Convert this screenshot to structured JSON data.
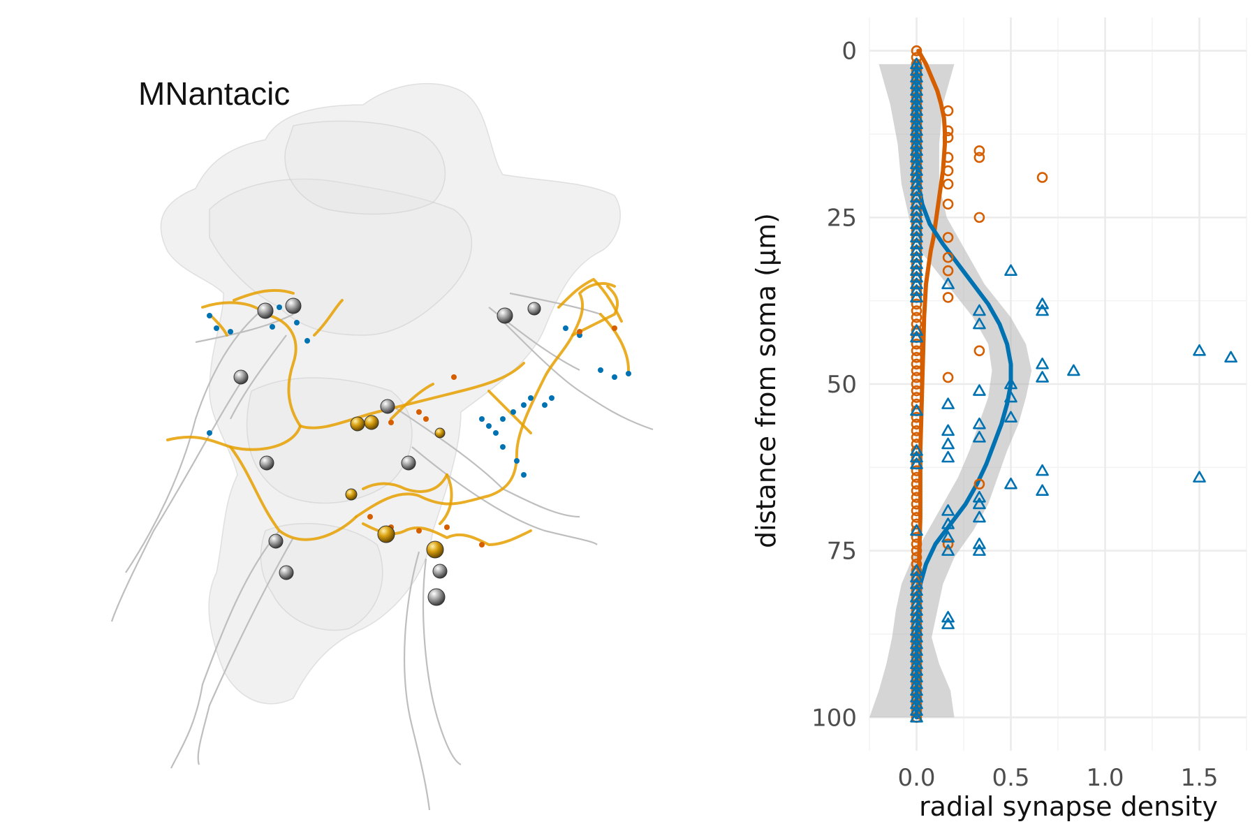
{
  "anatomy_panel": {
    "title": "MNantacic"
  },
  "colors": {
    "exc": "#D55E00",
    "inh": "#0072B2",
    "arbor": "#E69F00",
    "ribbon": "#BEBEBE",
    "neuropil": "#E6E6E6",
    "soma": "#9A9A9A"
  },
  "chart_data": {
    "type": "scatter",
    "xlabel": "radial synapse density",
    "ylabel": "distance from soma (µm)",
    "xlim": [
      -0.25,
      1.75
    ],
    "ylim": [
      105,
      -5
    ],
    "x_ticks": [
      0.0,
      0.5,
      1.0,
      1.5
    ],
    "x_tick_labels": [
      "0.0",
      "0.5",
      "1.0",
      "1.5"
    ],
    "y_ticks": [
      0,
      25,
      50,
      75,
      100
    ],
    "y_tick_labels": [
      "0",
      "25",
      "50",
      "75",
      "100"
    ],
    "y_reversed": true,
    "grid": true,
    "legend": "none",
    "series": [
      {
        "marker": "circle",
        "color": "#D55E00",
        "points": [
          [
            0,
            0
          ],
          [
            0,
            1
          ],
          [
            0,
            2
          ],
          [
            0,
            3
          ],
          [
            0,
            4
          ],
          [
            0,
            5
          ],
          [
            0,
            6
          ],
          [
            0,
            7
          ],
          [
            0,
            8
          ],
          [
            0,
            9
          ],
          [
            0,
            10
          ],
          [
            0,
            11
          ],
          [
            0,
            12
          ],
          [
            0,
            13
          ],
          [
            0,
            14
          ],
          [
            0,
            15
          ],
          [
            0,
            16
          ],
          [
            0,
            17
          ],
          [
            0,
            18
          ],
          [
            0,
            19
          ],
          [
            0,
            20
          ],
          [
            0,
            21
          ],
          [
            0,
            22
          ],
          [
            0,
            23
          ],
          [
            0,
            24
          ],
          [
            0,
            25
          ],
          [
            0,
            26
          ],
          [
            0,
            27
          ],
          [
            0,
            28
          ],
          [
            0,
            29
          ],
          [
            0,
            30
          ],
          [
            0,
            31
          ],
          [
            0,
            32
          ],
          [
            0,
            33
          ],
          [
            0,
            34
          ],
          [
            0,
            35
          ],
          [
            0,
            36
          ],
          [
            0,
            37
          ],
          [
            0,
            38
          ],
          [
            0,
            39
          ],
          [
            0,
            40
          ],
          [
            0,
            41
          ],
          [
            0,
            42
          ],
          [
            0,
            43
          ],
          [
            0,
            44
          ],
          [
            0,
            45
          ],
          [
            0,
            46
          ],
          [
            0,
            47
          ],
          [
            0,
            48
          ],
          [
            0,
            49
          ],
          [
            0,
            50
          ],
          [
            0,
            51
          ],
          [
            0,
            52
          ],
          [
            0,
            53
          ],
          [
            0,
            54
          ],
          [
            0,
            55
          ],
          [
            0,
            56
          ],
          [
            0,
            57
          ],
          [
            0,
            58
          ],
          [
            0,
            59
          ],
          [
            0,
            60
          ],
          [
            0,
            61
          ],
          [
            0,
            62
          ],
          [
            0,
            63
          ],
          [
            0,
            64
          ],
          [
            0,
            65
          ],
          [
            0,
            66
          ],
          [
            0,
            67
          ],
          [
            0,
            68
          ],
          [
            0,
            69
          ],
          [
            0,
            70
          ],
          [
            0,
            71
          ],
          [
            0,
            72
          ],
          [
            0,
            73
          ],
          [
            0,
            74
          ],
          [
            0,
            75
          ],
          [
            0,
            76
          ],
          [
            0,
            77
          ],
          [
            0,
            78
          ],
          [
            0,
            79
          ],
          [
            0,
            80
          ],
          [
            0,
            81
          ],
          [
            0,
            82
          ],
          [
            0,
            83
          ],
          [
            0,
            84
          ],
          [
            0,
            85
          ],
          [
            0,
            86
          ],
          [
            0,
            87
          ],
          [
            0,
            88
          ],
          [
            0,
            89
          ],
          [
            0,
            90
          ],
          [
            0,
            91
          ],
          [
            0,
            92
          ],
          [
            0,
            93
          ],
          [
            0,
            94
          ],
          [
            0,
            95
          ],
          [
            0,
            96
          ],
          [
            0,
            97
          ],
          [
            0,
            98
          ],
          [
            0,
            99
          ],
          [
            0,
            100
          ],
          [
            0.167,
            9
          ],
          [
            0.167,
            12
          ],
          [
            0.167,
            13
          ],
          [
            0.167,
            16
          ],
          [
            0.167,
            18
          ],
          [
            0.167,
            20
          ],
          [
            0.167,
            23
          ],
          [
            0.167,
            28
          ],
          [
            0.167,
            31
          ],
          [
            0.167,
            33
          ],
          [
            0.167,
            37
          ],
          [
            0.167,
            49
          ],
          [
            0.167,
            74
          ],
          [
            0.333,
            15
          ],
          [
            0.333,
            16
          ],
          [
            0.333,
            25
          ],
          [
            0.333,
            45
          ],
          [
            0.333,
            65
          ],
          [
            0.667,
            19
          ]
        ],
        "smooth": [
          [
            0,
            0.01
          ],
          [
            2,
            0.05
          ],
          [
            4,
            0.08
          ],
          [
            6,
            0.11
          ],
          [
            8,
            0.13
          ],
          [
            10,
            0.145
          ],
          [
            12,
            0.15
          ],
          [
            14,
            0.15
          ],
          [
            16,
            0.145
          ],
          [
            18,
            0.14
          ],
          [
            20,
            0.13
          ],
          [
            22,
            0.12
          ],
          [
            24,
            0.11
          ],
          [
            26,
            0.1
          ],
          [
            28,
            0.09
          ],
          [
            30,
            0.075
          ],
          [
            32,
            0.065
          ],
          [
            35,
            0.05
          ],
          [
            40,
            0.04
          ],
          [
            45,
            0.035
          ],
          [
            50,
            0.03
          ],
          [
            55,
            0.025
          ],
          [
            60,
            0.02
          ],
          [
            65,
            0.02
          ],
          [
            70,
            0.02
          ],
          [
            75,
            0.015
          ],
          [
            80,
            0.01
          ],
          [
            85,
            0.01
          ],
          [
            90,
            0.01
          ],
          [
            95,
            0.01
          ],
          [
            100,
            0.01
          ]
        ]
      },
      {
        "marker": "triangle",
        "color": "#0072B2",
        "points": [
          [
            0,
            2
          ],
          [
            0,
            3
          ],
          [
            0,
            4
          ],
          [
            0,
            5
          ],
          [
            0,
            6
          ],
          [
            0,
            7
          ],
          [
            0,
            8
          ],
          [
            0,
            9
          ],
          [
            0,
            10
          ],
          [
            0,
            11
          ],
          [
            0,
            12
          ],
          [
            0,
            13
          ],
          [
            0,
            14
          ],
          [
            0,
            15
          ],
          [
            0,
            16
          ],
          [
            0,
            17
          ],
          [
            0,
            18
          ],
          [
            0,
            19
          ],
          [
            0,
            20
          ],
          [
            0,
            21
          ],
          [
            0,
            22
          ],
          [
            0,
            23
          ],
          [
            0,
            24
          ],
          [
            0,
            25
          ],
          [
            0,
            26
          ],
          [
            0,
            27
          ],
          [
            0,
            28
          ],
          [
            0,
            29
          ],
          [
            0,
            30
          ],
          [
            0,
            31
          ],
          [
            0,
            32
          ],
          [
            0,
            33
          ],
          [
            0,
            34
          ],
          [
            0,
            35
          ],
          [
            0,
            36
          ],
          [
            0,
            37
          ],
          [
            0,
            42
          ],
          [
            0,
            43
          ],
          [
            0,
            54
          ],
          [
            0,
            60
          ],
          [
            0,
            61
          ],
          [
            0,
            62
          ],
          [
            0,
            72
          ],
          [
            0,
            78
          ],
          [
            0,
            79
          ],
          [
            0,
            80
          ],
          [
            0,
            81
          ],
          [
            0,
            82
          ],
          [
            0,
            83
          ],
          [
            0,
            84
          ],
          [
            0,
            85
          ],
          [
            0,
            86
          ],
          [
            0,
            87
          ],
          [
            0,
            88
          ],
          [
            0,
            89
          ],
          [
            0,
            90
          ],
          [
            0,
            91
          ],
          [
            0,
            92
          ],
          [
            0,
            93
          ],
          [
            0,
            94
          ],
          [
            0,
            95
          ],
          [
            0,
            96
          ],
          [
            0,
            97
          ],
          [
            0,
            98
          ],
          [
            0,
            99
          ],
          [
            0,
            100
          ],
          [
            0.167,
            35
          ],
          [
            0.167,
            53
          ],
          [
            0.167,
            57
          ],
          [
            0.167,
            59
          ],
          [
            0.167,
            61
          ],
          [
            0.167,
            69
          ],
          [
            0.167,
            71
          ],
          [
            0.167,
            73
          ],
          [
            0.167,
            75
          ],
          [
            0.167,
            85
          ],
          [
            0.167,
            86
          ],
          [
            0.333,
            39
          ],
          [
            0.333,
            41
          ],
          [
            0.333,
            51
          ],
          [
            0.333,
            56
          ],
          [
            0.333,
            58
          ],
          [
            0.333,
            67
          ],
          [
            0.333,
            68
          ],
          [
            0.333,
            70
          ],
          [
            0.333,
            74
          ],
          [
            0.333,
            75
          ],
          [
            0.5,
            33
          ],
          [
            0.5,
            50
          ],
          [
            0.5,
            52
          ],
          [
            0.5,
            55
          ],
          [
            0.5,
            65
          ],
          [
            0.667,
            38
          ],
          [
            0.667,
            39
          ],
          [
            0.667,
            47
          ],
          [
            0.667,
            49
          ],
          [
            0.667,
            63
          ],
          [
            0.667,
            66
          ],
          [
            0.833,
            48
          ],
          [
            1.5,
            45
          ],
          [
            1.5,
            64
          ],
          [
            1.667,
            46
          ]
        ],
        "smooth": [
          [
            2,
            0.0
          ],
          [
            10,
            0.0
          ],
          [
            15,
            0.0
          ],
          [
            20,
            0.01
          ],
          [
            23,
            0.03
          ],
          [
            26,
            0.07
          ],
          [
            29,
            0.14
          ],
          [
            32,
            0.22
          ],
          [
            35,
            0.3
          ],
          [
            38,
            0.38
          ],
          [
            41,
            0.44
          ],
          [
            44,
            0.48
          ],
          [
            47,
            0.5
          ],
          [
            50,
            0.5
          ],
          [
            53,
            0.48
          ],
          [
            56,
            0.45
          ],
          [
            59,
            0.41
          ],
          [
            62,
            0.37
          ],
          [
            65,
            0.32
          ],
          [
            68,
            0.26
          ],
          [
            71,
            0.18
          ],
          [
            74,
            0.1
          ],
          [
            77,
            0.05
          ],
          [
            80,
            0.02
          ],
          [
            84,
            0.01
          ],
          [
            88,
            0.0
          ],
          [
            100,
            0.0
          ]
        ],
        "band": [
          [
            2,
            -0.2,
            0.2
          ],
          [
            8,
            -0.14,
            0.14
          ],
          [
            14,
            -0.1,
            0.12
          ],
          [
            20,
            -0.08,
            0.12
          ],
          [
            25,
            -0.04,
            0.16
          ],
          [
            30,
            0.02,
            0.26
          ],
          [
            35,
            0.16,
            0.36
          ],
          [
            40,
            0.3,
            0.5
          ],
          [
            44,
            0.38,
            0.58
          ],
          [
            48,
            0.4,
            0.61
          ],
          [
            52,
            0.38,
            0.58
          ],
          [
            56,
            0.33,
            0.54
          ],
          [
            60,
            0.28,
            0.48
          ],
          [
            64,
            0.22,
            0.43
          ],
          [
            68,
            0.14,
            0.38
          ],
          [
            72,
            0.06,
            0.3
          ],
          [
            76,
            -0.02,
            0.2
          ],
          [
            80,
            -0.08,
            0.14
          ],
          [
            84,
            -0.11,
            0.11
          ],
          [
            88,
            -0.13,
            0.08
          ],
          [
            92,
            -0.16,
            0.12
          ],
          [
            96,
            -0.2,
            0.18
          ],
          [
            100,
            -0.25,
            0.2
          ]
        ]
      }
    ]
  }
}
